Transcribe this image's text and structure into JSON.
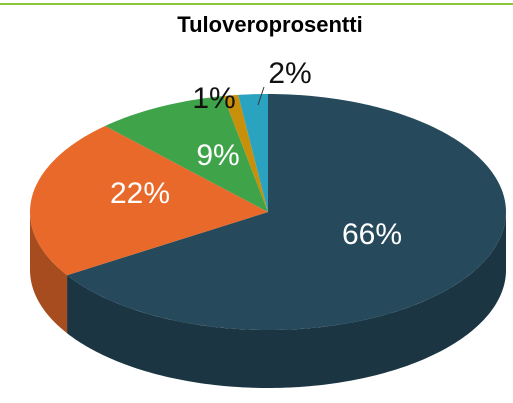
{
  "chart_data": {
    "type": "pie",
    "title": "Tuloveroprosentti",
    "categories": [
      null,
      null,
      null,
      null,
      null
    ],
    "values": [
      66,
      22,
      9,
      1,
      2
    ],
    "value_labels": [
      "66%",
      "22%",
      "9%",
      "1%",
      "2%"
    ],
    "colors": [
      "#264a5c",
      "#e8692a",
      "#3fa34a",
      "#c8900a",
      "#2aa3c0"
    ]
  }
}
